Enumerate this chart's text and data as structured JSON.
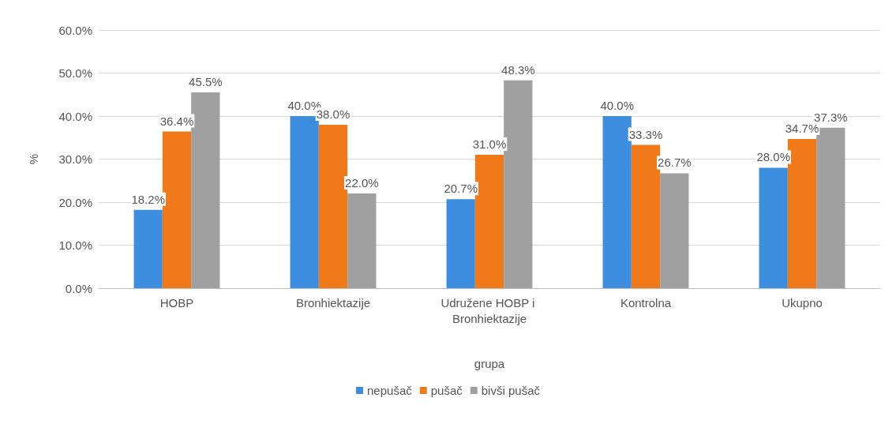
{
  "chart_data": {
    "type": "bar",
    "xlabel": "grupa",
    "ylabel": "%",
    "categories": [
      "HOBP",
      "Bronhiektazije",
      "Udružene HOBP i Bronhiektazije",
      "Kontrolna",
      "Ukupno"
    ],
    "series": [
      {
        "name": "nepušač",
        "color": "#3e8ee0",
        "values": [
          18.2,
          40.0,
          20.7,
          40.0,
          28.0
        ],
        "value_labels": [
          "18.2%",
          "40.0%",
          "20.7%",
          "40.0%",
          "28.0%"
        ]
      },
      {
        "name": "pušač",
        "color": "#f07a1a",
        "values": [
          36.4,
          38.0,
          31.0,
          33.3,
          34.7
        ],
        "value_labels": [
          "36.4%",
          "38.0%",
          "31.0%",
          "33.3%",
          "34.7%"
        ]
      },
      {
        "name": "bivši pušač",
        "color": "#a0a0a0",
        "values": [
          45.5,
          22.0,
          48.3,
          26.7,
          37.3
        ],
        "value_labels": [
          "45.5%",
          "22.0%",
          "48.3%",
          "26.7%",
          "37.3%"
        ]
      }
    ],
    "ylim": [
      0,
      60
    ],
    "yticks": [
      {
        "value": 0,
        "label": "0.0%"
      },
      {
        "value": 10,
        "label": "10.0%"
      },
      {
        "value": 20,
        "label": "20.0%"
      },
      {
        "value": 30,
        "label": "30.0%"
      },
      {
        "value": 40,
        "label": "40.0%"
      },
      {
        "value": 50,
        "label": "50.0%"
      },
      {
        "value": 60,
        "label": "60.0%"
      }
    ],
    "grid": "y",
    "legend": "bottom"
  }
}
